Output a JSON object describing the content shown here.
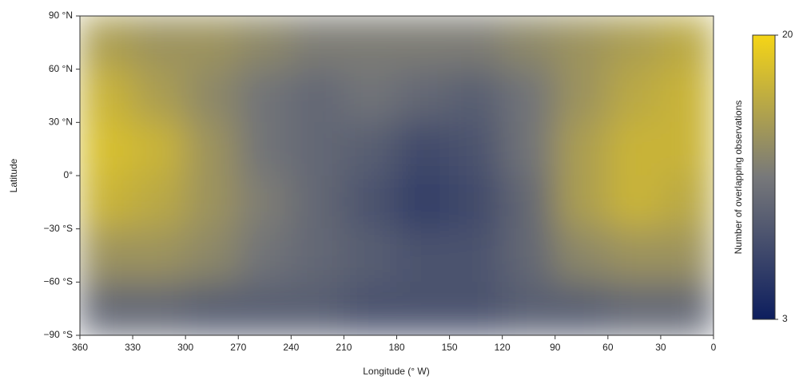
{
  "chart_data": {
    "type": "heatmap",
    "x_label": "Longitude (° W)",
    "y_label": "Latitude",
    "colorbar_label": "Number of overlapping observations",
    "x": [
      345,
      315,
      285,
      255,
      225,
      195,
      165,
      135,
      105,
      75,
      45,
      15
    ],
    "y": [
      75,
      45,
      15,
      -15,
      -45,
      -75
    ],
    "z": [
      [
        15,
        14,
        14,
        13,
        12,
        12,
        12,
        12,
        13,
        14,
        15,
        16
      ],
      [
        17,
        15,
        13,
        11,
        10,
        11,
        10,
        9,
        11,
        14,
        16,
        17
      ],
      [
        18,
        17,
        14,
        11,
        10,
        9,
        7,
        8,
        11,
        15,
        17,
        17
      ],
      [
        17,
        16,
        14,
        12,
        10,
        8,
        6,
        7,
        10,
        15,
        17,
        16
      ],
      [
        14,
        14,
        13,
        11,
        10,
        9,
        8,
        8,
        10,
        13,
        14,
        14
      ],
      [
        10,
        10,
        9,
        9,
        9,
        8,
        8,
        8,
        9,
        9,
        10,
        10
      ]
    ],
    "xlim": [
      360,
      0
    ],
    "xticks": [
      360,
      330,
      300,
      270,
      240,
      210,
      180,
      150,
      120,
      90,
      60,
      30,
      0
    ],
    "ylim": [
      -90,
      90
    ],
    "yticks": [
      {
        "value": 90,
        "label": "90 °N"
      },
      {
        "value": 60,
        "label": "60 °N"
      },
      {
        "value": 30,
        "label": "30 °N"
      },
      {
        "value": 0,
        "label": "0°"
      },
      {
        "value": -30,
        "label": "−30 °S"
      },
      {
        "value": -60,
        "label": "−60 °S"
      },
      {
        "value": -90,
        "label": "−90 °S"
      }
    ],
    "zlim": [
      3,
      20
    ],
    "zticks": [
      3,
      20
    ],
    "colormap": [
      "#0d1e5e",
      "#77787a",
      "#f5d516"
    ]
  }
}
